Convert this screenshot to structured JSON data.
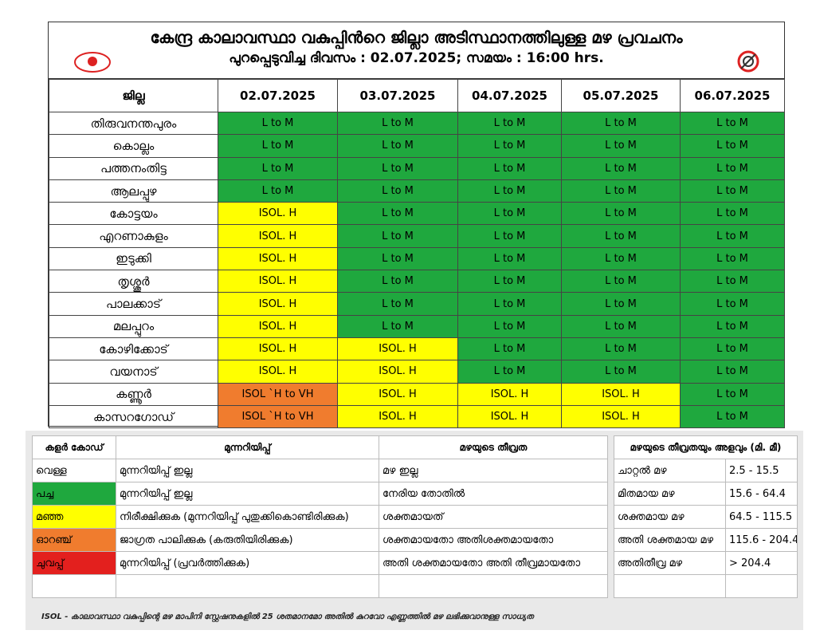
{
  "header": {
    "title": "കേന്ദ്ര കാലാവസ്ഥാ വകുപ്പിന്‍റെ ജില്ലാ അടിസ്ഥാനത്തിലുള്ള  മഴ പ്രവചനം",
    "subtitle": "പുറപ്പെടുവിച്ച ദിവസം : 02.07.2025; സമയം : 16:00 hrs."
  },
  "table": {
    "columns": [
      "ജില്ല",
      "02.07.2025",
      "03.07.2025",
      "04.07.2025",
      "05.07.2025",
      "06.07.2025"
    ],
    "cell_colors": {
      "L to M": "#1fa83e",
      "ISOL. H": "#ffff00",
      "ISOL `H to VH": "#f07c2e"
    },
    "rows": [
      [
        "തിരുവനന്തപുരം",
        "L to M",
        "L to M",
        "L to M",
        "L to M",
        "L to M"
      ],
      [
        "കൊല്ലം",
        "L to M",
        "L to M",
        "L to M",
        "L to M",
        "L to M"
      ],
      [
        "പത്തനംതിട്ട",
        "L to M",
        "L to M",
        "L to M",
        "L to M",
        "L to M"
      ],
      [
        "ആലപ്പുഴ",
        "L to M",
        "L to M",
        "L to M",
        "L to M",
        "L to M"
      ],
      [
        "കോട്ടയം",
        "ISOL. H",
        "L to M",
        "L to M",
        "L to M",
        "L to M"
      ],
      [
        "എറണാകുളം",
        "ISOL. H",
        "L to M",
        "L to M",
        "L to M",
        "L to M"
      ],
      [
        "ഇടുക്കി",
        "ISOL. H",
        "L to M",
        "L to M",
        "L to M",
        "L to M"
      ],
      [
        "തൃശ്ശൂർ",
        "ISOL. H",
        "L to M",
        "L to M",
        "L to M",
        "L to M"
      ],
      [
        "പാലക്കാട്",
        "ISOL. H",
        "L to M",
        "L to M",
        "L to M",
        "L to M"
      ],
      [
        "മലപ്പുറം",
        "ISOL. H",
        "L to M",
        "L to M",
        "L to M",
        "L to M"
      ],
      [
        "കോഴിക്കോട്",
        "ISOL. H",
        "ISOL. H",
        "L to M",
        "L to M",
        "L to M"
      ],
      [
        "വയനാട്",
        "ISOL. H",
        "ISOL. H",
        "L to M",
        "L to M",
        "L to M"
      ],
      [
        "കണ്ണൂർ",
        "ISOL `H to VH",
        "ISOL. H",
        "ISOL. H",
        "ISOL. H",
        "L to M"
      ],
      [
        "കാസറഗോഡ്",
        "ISOL `H to VH",
        "ISOL. H",
        "ISOL. H",
        "ISOL. H",
        "L to M"
      ]
    ]
  },
  "legend": {
    "columns": [
      "കളർ കോഡ്",
      "മുന്നറിയിപ്പ്",
      "മഴയുടെ തീവ്രത"
    ],
    "colors": [
      "#ffffff",
      "#1fa83e",
      "#ffff00",
      "#f07c2e",
      "#e3201e"
    ],
    "rows": [
      [
        "വെള്ള",
        "മുന്നറിയിപ്പ് ഇല്ല",
        "മഴ ഇല്ല"
      ],
      [
        "പച്ച",
        "മുന്നറിയിപ്പ് ഇല്ല",
        "നേരിയ തോതിൽ"
      ],
      [
        "മഞ്ഞ",
        "നിരീക്ഷിക്കുക (മുന്നറിയിപ്പ് പുതുക്കികൊണ്ടിരിക്കുക)",
        "ശക്തമായത്"
      ],
      [
        "ഓറഞ്ച്",
        "ജാഗ്രത പാലിക്കുക (കരുതിയിരിക്കുക)",
        "ശക്തമായതോ അതിശക്തമായതോ"
      ],
      [
        "ചുവപ്പ്",
        "മുന്നറിയിപ്പ് (പ്രവർത്തിക്കുക)",
        "അതി ശക്തമായതോ അതി തീവ്രമായതോ"
      ]
    ]
  },
  "intensity": {
    "title": "മഴയുടെ തീവ്രതയും അളവും (മി. മീ)",
    "rows": [
      [
        "ചാറ്റൽ മഴ",
        "2.5 - 15.5"
      ],
      [
        "മിതമായ മഴ",
        "15.6 - 64.4"
      ],
      [
        "ശക്തമായ മഴ",
        "64.5 - 115.5"
      ],
      [
        "അതി ശക്തമായ മഴ",
        "115.6 - 204.4"
      ],
      [
        "അതിതീവ്ര മഴ",
        "> 204.4"
      ]
    ]
  },
  "footnote": "ISOL - കാലാവസ്ഥാ വകുപ്പിന്റെ മഴ മാപിനി സ്റ്റേഷനുകളിൽ 25 ശതമാനമോ അതിൽ കുറവോ എണ്ണത്തിൽ മഴ ലഭിക്കുവാനുള്ള സാധ്യത"
}
